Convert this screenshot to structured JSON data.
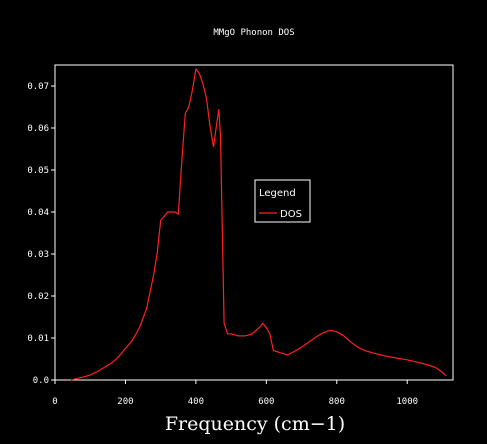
{
  "chart_data": {
    "type": "line",
    "title": "MMgO Phonon DOS",
    "xlabel": "Frequency (cm−1)",
    "ylabel": "",
    "xlim": [
      0,
      1130
    ],
    "ylim": [
      0,
      0.075
    ],
    "xticks": [
      0,
      200,
      400,
      600,
      800,
      1000
    ],
    "yticks": [
      0,
      0.01,
      0.02,
      0.03,
      0.04,
      0.05,
      0.06,
      0.07
    ],
    "xtick_labels": [
      "0",
      "200",
      "400",
      "600",
      "800",
      "1000"
    ],
    "ytick_labels": [
      "0.0",
      "0.01",
      "0.02",
      "0.03",
      "0.04",
      "0.05",
      "0.06",
      "0.07"
    ],
    "legend": {
      "title": "Legend",
      "placement": "center-right"
    },
    "grid": false,
    "series": [
      {
        "name": "DOS",
        "color": "#ff2020",
        "x": [
          45,
          60,
          80,
          100,
          120,
          140,
          160,
          180,
          200,
          220,
          240,
          260,
          280,
          290,
          300,
          320,
          340,
          350,
          360,
          370,
          380,
          390,
          400,
          410,
          420,
          430,
          440,
          450,
          460,
          465,
          470,
          480,
          490,
          500,
          520,
          540,
          560,
          580,
          590,
          600,
          610,
          620,
          640,
          660,
          680,
          700,
          720,
          740,
          760,
          780,
          800,
          820,
          840,
          860,
          880,
          900,
          950,
          1000,
          1050,
          1080,
          1100,
          1110
        ],
        "y": [
          0.0,
          0.0003,
          0.0007,
          0.0012,
          0.002,
          0.003,
          0.004,
          0.0055,
          0.0075,
          0.0095,
          0.0125,
          0.017,
          0.025,
          0.03,
          0.038,
          0.04,
          0.04,
          0.0395,
          0.052,
          0.0635,
          0.065,
          0.069,
          0.074,
          0.073,
          0.0705,
          0.067,
          0.0605,
          0.0555,
          0.0615,
          0.0645,
          0.058,
          0.0135,
          0.011,
          0.011,
          0.0105,
          0.0105,
          0.011,
          0.0125,
          0.0135,
          0.0125,
          0.011,
          0.007,
          0.0065,
          0.006,
          0.0068,
          0.0078,
          0.009,
          0.0102,
          0.0112,
          0.0118,
          0.0115,
          0.0105,
          0.009,
          0.0078,
          0.007,
          0.0065,
          0.0055,
          0.0048,
          0.0038,
          0.003,
          0.0018,
          0.001
        ]
      }
    ]
  }
}
